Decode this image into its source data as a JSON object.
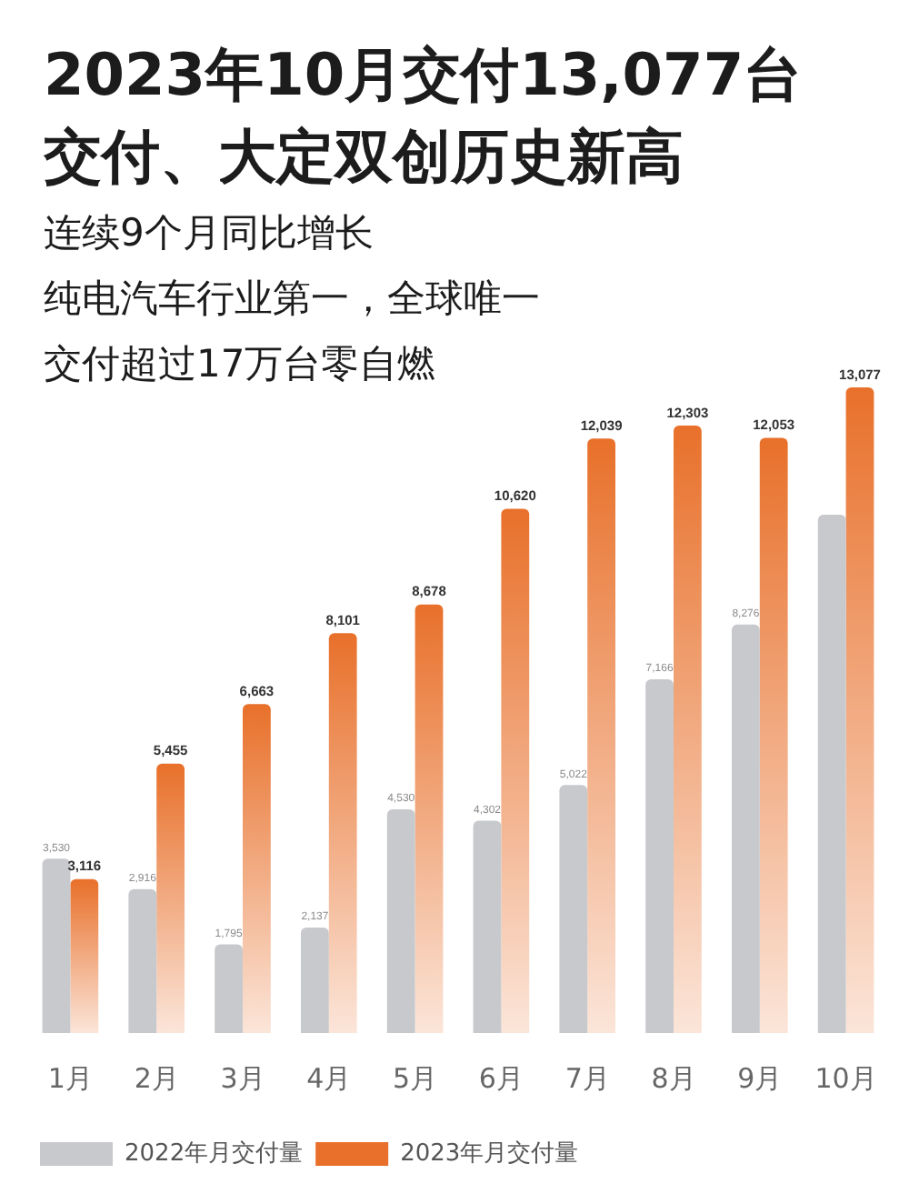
{
  "chart_data": {
    "type": "bar",
    "title": "2023年10月交付13,077台",
    "subtitle": "交付、大定双创历史新高",
    "annotations": [
      "连续9个月同比增长",
      "纯电汽车行业第一，全球唯一",
      "交付超过17万台零自燃"
    ],
    "categories": [
      "1月",
      "2月",
      "3月",
      "4月",
      "5月",
      "6月",
      "7月",
      "8月",
      "9月",
      "10月"
    ],
    "series": [
      {
        "name": "2022年月交付量",
        "color": "#c8c9cc",
        "values": [
          3530,
          2916,
          1795,
          2137,
          4530,
          4302,
          5022,
          7166,
          8276,
          10500
        ],
        "value_labels": [
          "3,530",
          "2,916",
          "1,795",
          "2,137",
          "4,530",
          "4,302",
          "5,022",
          "7,166",
          "8,276",
          null
        ]
      },
      {
        "name": "2023年月交付量",
        "color": "#e8702a",
        "values": [
          3116,
          5455,
          6663,
          8101,
          8678,
          10620,
          12039,
          12303,
          12053,
          13077
        ],
        "value_labels": [
          "3,116",
          "5,455",
          "6,663",
          "8,101",
          "8,678",
          "10,620",
          "12,039",
          "12,303",
          "12,053",
          "13,077"
        ]
      }
    ],
    "legend": "bottom left"
  }
}
